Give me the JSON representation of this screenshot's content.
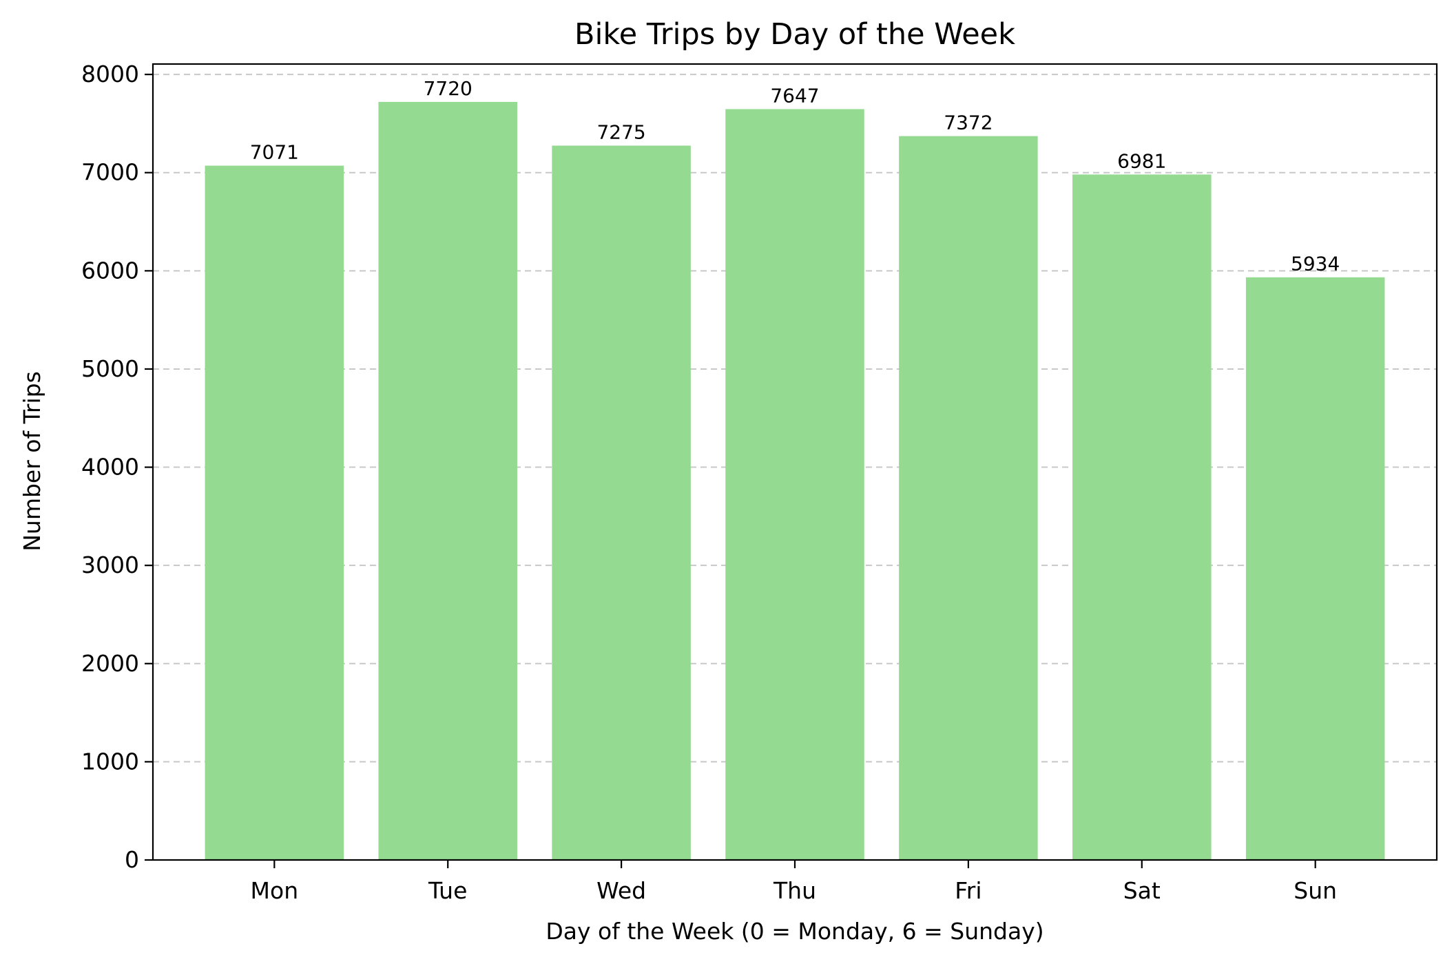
{
  "chart_data": {
    "type": "bar",
    "title": "Bike Trips by Day of the Week",
    "xlabel": "Day of the Week (0 = Monday, 6 = Sunday)",
    "ylabel": "Number of Trips",
    "categories": [
      "Mon",
      "Tue",
      "Wed",
      "Thu",
      "Fri",
      "Sat",
      "Sun"
    ],
    "values": [
      7071,
      7720,
      7275,
      7647,
      7372,
      6981,
      5934
    ],
    "data_labels": [
      "7071",
      "7720",
      "7275",
      "7647",
      "7372",
      "6981",
      "5934"
    ],
    "yticks": [
      0,
      1000,
      2000,
      3000,
      4000,
      5000,
      6000,
      7000,
      8000
    ],
    "ytick_labels": [
      "0",
      "1000",
      "2000",
      "3000",
      "4000",
      "5000",
      "6000",
      "7000",
      "8000"
    ],
    "ylim": [
      0,
      8106
    ],
    "grid": "y-dashed",
    "legend": "none",
    "bar_color": "#94da91",
    "grid_color": "#c8c8c8"
  }
}
